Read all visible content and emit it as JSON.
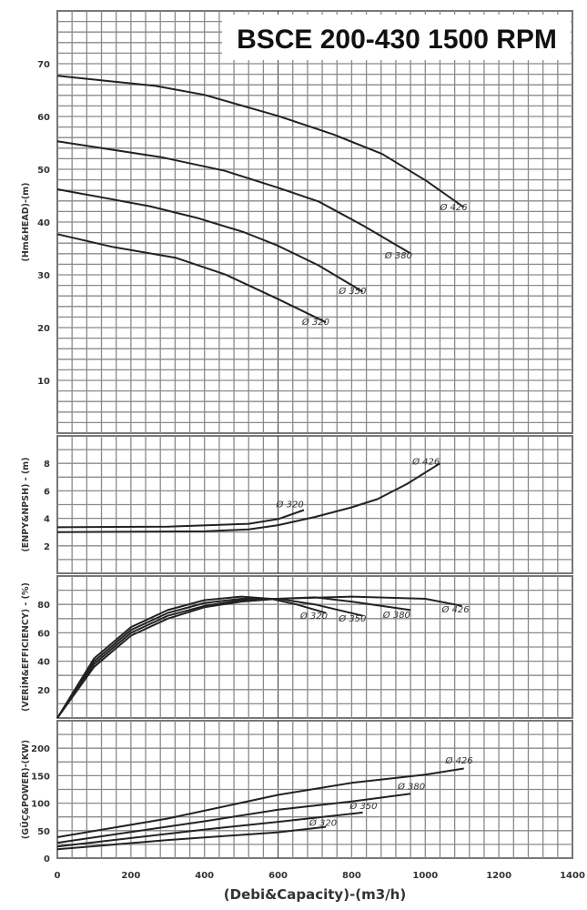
{
  "chart_data": {
    "title": "BSCE 200-430 1500 RPM",
    "xlabel": "(Debi&Capacity)-(m3/h)",
    "xlim": [
      0,
      1400
    ],
    "xticks": [
      0,
      200,
      400,
      600,
      800,
      1000,
      1200,
      1400
    ],
    "grid": true,
    "panels": [
      {
        "id": "head",
        "type": "line",
        "ylabel": "(Hm&HEAD)-(m)",
        "ylim": [
          0,
          80
        ],
        "ygrid_step": 2,
        "yticks": [
          10,
          20,
          30,
          40,
          50,
          60,
          70
        ],
        "series": [
          {
            "name": "Ø 426",
            "points": [
              [
                0,
                67.7
              ],
              [
                267,
                65.8
              ],
              [
                399,
                64.1
              ],
              [
                600,
                60.1
              ],
              [
                750,
                56.6
              ],
              [
                883,
                52.9
              ],
              [
                1005,
                47.7
              ],
              [
                1105,
                42.8
              ]
            ],
            "label_at": [
              1040,
              42.2
            ]
          },
          {
            "name": "Ø 380",
            "points": [
              [
                0,
                55.3
              ],
              [
                282,
                52.3
              ],
              [
                455,
                49.7
              ],
              [
                600,
                46.5
              ],
              [
                710,
                43.9
              ],
              [
                832,
                39.3
              ],
              [
                959,
                34.1
              ]
            ],
            "label_at": [
              890,
              33.1
            ]
          },
          {
            "name": "Ø 350",
            "points": [
              [
                0,
                46.2
              ],
              [
                251,
                43
              ],
              [
                384,
                40.7
              ],
              [
                506,
                38.1
              ],
              [
                600,
                35.5
              ],
              [
                710,
                31.8
              ],
              [
                830,
                26.8
              ]
            ],
            "label_at": [
              765,
              26.4
            ]
          },
          {
            "name": "Ø 320",
            "points": [
              [
                0,
                37.7
              ],
              [
                150,
                35.3
              ],
              [
                323,
                33.2
              ],
              [
                455,
                30.1
              ],
              [
                600,
                25.4
              ],
              [
                730,
                21
              ]
            ],
            "label_at": [
              665,
              20.5
            ]
          }
        ]
      },
      {
        "id": "npsh",
        "type": "line",
        "ylabel": "(ENPY&NPSH) - (m)",
        "ylim": [
          0,
          10
        ],
        "ygrid_step": 1,
        "yticks": [
          2,
          4,
          6,
          8
        ],
        "series": [
          {
            "name": "Ø 426",
            "points": [
              [
                0,
                3.0
              ],
              [
                400,
                3.05
              ],
              [
                520,
                3.2
              ],
              [
                600,
                3.5
              ],
              [
                700,
                4.1
              ],
              [
                800,
                4.8
              ],
              [
                870,
                5.4
              ],
              [
                950,
                6.5
              ],
              [
                1040,
                8.0
              ]
            ],
            "label_at": [
              965,
              7.9
            ]
          },
          {
            "name": "Ø 320",
            "points": [
              [
                0,
                3.35
              ],
              [
                300,
                3.4
              ],
              [
                520,
                3.6
              ],
              [
                600,
                3.95
              ],
              [
                670,
                4.6
              ]
            ],
            "label_at": [
              595,
              4.8
            ]
          }
        ]
      },
      {
        "id": "efficiency",
        "type": "line",
        "ylabel": "(VERİM&EFFICIENCY) - (%)",
        "ylim": [
          0,
          100
        ],
        "ygrid_step": 10,
        "yticks": [
          20,
          40,
          60,
          80
        ],
        "series": [
          {
            "name": "Ø 320",
            "points": [
              [
                0,
                0
              ],
              [
                100,
                42
              ],
              [
                200,
                64
              ],
              [
                300,
                76
              ],
              [
                400,
                83
              ],
              [
                500,
                85.5
              ],
              [
                580,
                84
              ],
              [
                650,
                80
              ],
              [
                730,
                74
              ]
            ],
            "label_at": [
              660,
              70
            ]
          },
          {
            "name": "Ø 350",
            "points": [
              [
                0,
                0
              ],
              [
                100,
                40
              ],
              [
                200,
                62
              ],
              [
                300,
                74
              ],
              [
                400,
                81
              ],
              [
                500,
                84
              ],
              [
                600,
                84
              ],
              [
                700,
                80
              ],
              [
                830,
                72
              ]
            ],
            "label_at": [
              765,
              68
            ]
          },
          {
            "name": "Ø 380",
            "points": [
              [
                0,
                0
              ],
              [
                100,
                38
              ],
              [
                200,
                60
              ],
              [
                300,
                72
              ],
              [
                400,
                79
              ],
              [
                500,
                83
              ],
              [
                600,
                84
              ],
              [
                700,
                85
              ],
              [
                800,
                82
              ],
              [
                960,
                76
              ]
            ],
            "label_at": [
              885,
              70.5
            ]
          },
          {
            "name": "Ø 426",
            "points": [
              [
                0,
                0
              ],
              [
                100,
                36
              ],
              [
                200,
                58
              ],
              [
                300,
                70
              ],
              [
                400,
                78
              ],
              [
                500,
                82
              ],
              [
                600,
                84
              ],
              [
                800,
                85.5
              ],
              [
                1000,
                84
              ],
              [
                1100,
                79
              ]
            ],
            "label_at": [
              1045,
              74.5
            ]
          }
        ]
      },
      {
        "id": "power",
        "type": "line",
        "ylabel": "(GÜÇ&POWER)-(KW)",
        "ylim": [
          0,
          250
        ],
        "ygrid_step": 25,
        "yticks": [
          0,
          50,
          100,
          150,
          200
        ],
        "series": [
          {
            "name": "Ø 426",
            "points": [
              [
                0,
                38
              ],
              [
                300,
                72
              ],
              [
                600,
                115
              ],
              [
                800,
                137
              ],
              [
                1000,
                152
              ],
              [
                1105,
                163
              ]
            ],
            "label_at": [
              1055,
              172
            ]
          },
          {
            "name": "Ø 380",
            "points": [
              [
                0,
                28
              ],
              [
                400,
                67
              ],
              [
                600,
                88
              ],
              [
                800,
                103
              ],
              [
                960,
                117
              ]
            ],
            "label_at": [
              925,
              125
            ]
          },
          {
            "name": "Ø 350",
            "points": [
              [
                0,
                21
              ],
              [
                400,
                52
              ],
              [
                600,
                66
              ],
              [
                830,
                83
              ]
            ],
            "label_at": [
              795,
              89
            ]
          },
          {
            "name": "Ø 320",
            "points": [
              [
                0,
                16
              ],
              [
                300,
                33
              ],
              [
                600,
                47
              ],
              [
                730,
                57
              ]
            ],
            "label_at": [
              685,
              59
            ]
          }
        ]
      }
    ]
  },
  "colors": {
    "grid": "#8a8a8a",
    "curve": "#222222",
    "frame": "#777777"
  }
}
